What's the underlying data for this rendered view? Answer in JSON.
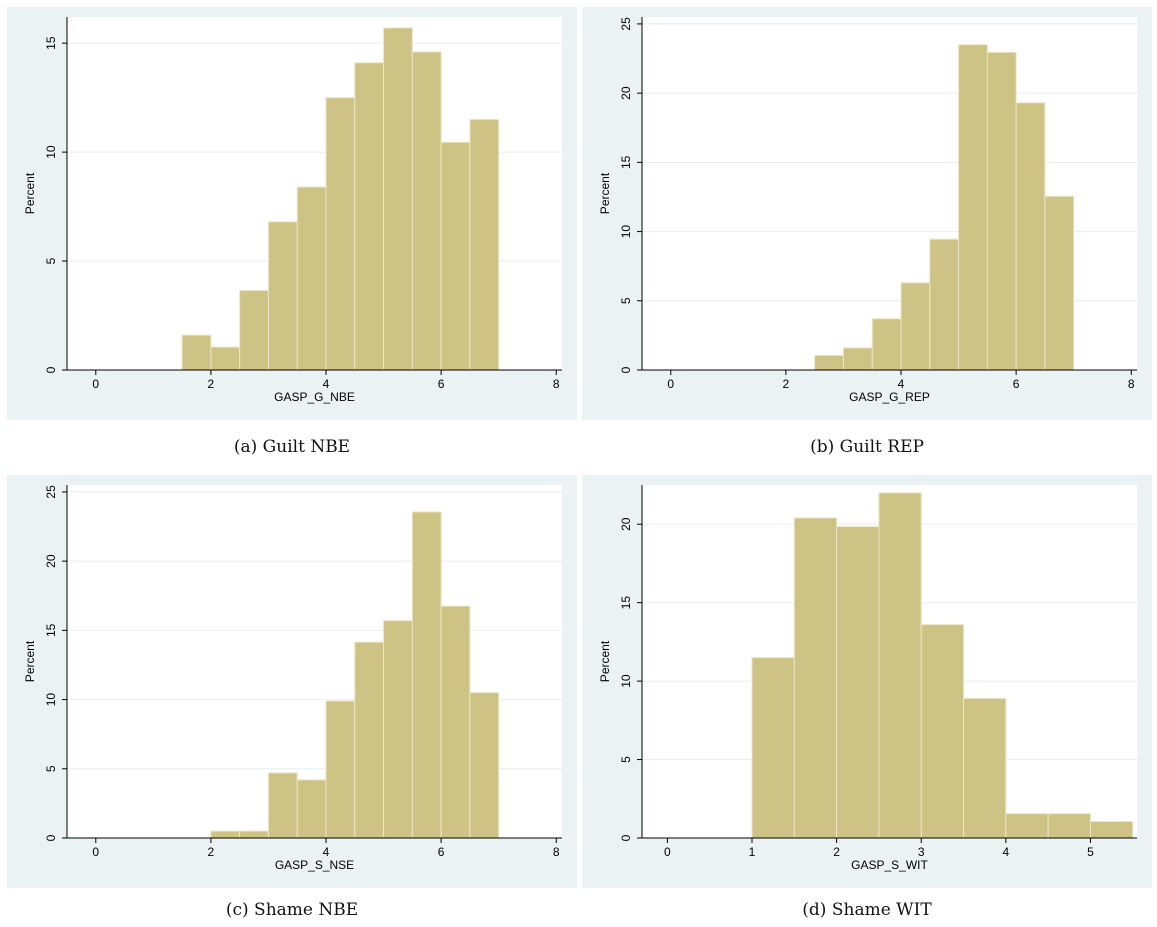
{
  "chart_data": [
    {
      "type": "bar",
      "caption": "(a) Guilt NBE",
      "xlabel": "GASP_G_NBE",
      "ylabel": "Percent",
      "xlim": [
        -0.5,
        8.1
      ],
      "ylim": [
        0,
        16.2
      ],
      "xticks": [
        0,
        2,
        4,
        6,
        8
      ],
      "yticks": [
        0,
        5,
        10,
        15
      ],
      "bin_width": 0.5,
      "bins": [
        {
          "x0": 1.5,
          "value": 1.6
        },
        {
          "x0": 2.0,
          "value": 1.05
        },
        {
          "x0": 2.5,
          "value": 3.65
        },
        {
          "x0": 3.0,
          "value": 6.8
        },
        {
          "x0": 3.5,
          "value": 8.4
        },
        {
          "x0": 4.0,
          "value": 12.5
        },
        {
          "x0": 4.5,
          "value": 14.1
        },
        {
          "x0": 5.0,
          "value": 15.7
        },
        {
          "x0": 5.5,
          "value": 14.6
        },
        {
          "x0": 6.0,
          "value": 10.45
        },
        {
          "x0": 6.5,
          "value": 11.5
        }
      ]
    },
    {
      "type": "bar",
      "caption": "(b) Guilt REP",
      "xlabel": "GASP_G_REP",
      "ylabel": "Percent",
      "xlim": [
        -0.5,
        8.1
      ],
      "ylim": [
        0,
        25.5
      ],
      "xticks": [
        0,
        2,
        4,
        6,
        8
      ],
      "yticks": [
        0,
        5,
        10,
        15,
        20,
        25
      ],
      "bin_width": 0.5,
      "bins": [
        {
          "x0": 2.5,
          "value": 1.05
        },
        {
          "x0": 3.0,
          "value": 1.6
        },
        {
          "x0": 3.5,
          "value": 3.7
        },
        {
          "x0": 4.0,
          "value": 6.3
        },
        {
          "x0": 4.5,
          "value": 9.45
        },
        {
          "x0": 5.0,
          "value": 23.5
        },
        {
          "x0": 5.5,
          "value": 22.95
        },
        {
          "x0": 6.0,
          "value": 19.3
        },
        {
          "x0": 6.5,
          "value": 12.55
        }
      ]
    },
    {
      "type": "bar",
      "caption": "(c) Shame NBE",
      "xlabel": "GASP_S_NSE",
      "ylabel": "Percent",
      "xlim": [
        -0.5,
        8.1
      ],
      "ylim": [
        0,
        25.5
      ],
      "xticks": [
        0,
        2,
        4,
        6,
        8
      ],
      "yticks": [
        0,
        5,
        10,
        15,
        20,
        25
      ],
      "bin_width": 0.5,
      "bins": [
        {
          "x0": 2.0,
          "value": 0.5
        },
        {
          "x0": 2.5,
          "value": 0.5
        },
        {
          "x0": 3.0,
          "value": 4.7
        },
        {
          "x0": 3.5,
          "value": 4.2
        },
        {
          "x0": 4.0,
          "value": 9.9
        },
        {
          "x0": 4.5,
          "value": 14.15
        },
        {
          "x0": 5.0,
          "value": 15.7
        },
        {
          "x0": 5.5,
          "value": 23.55
        },
        {
          "x0": 6.0,
          "value": 16.75
        },
        {
          "x0": 6.5,
          "value": 10.5
        }
      ]
    },
    {
      "type": "bar",
      "caption": "(d) Shame WIT",
      "xlabel": "GASP_S_WIT",
      "ylabel": "Percent",
      "xlim": [
        -0.3,
        5.55
      ],
      "ylim": [
        0,
        22.5
      ],
      "xticks": [
        0,
        1,
        2,
        3,
        4,
        5
      ],
      "yticks": [
        0,
        5,
        10,
        15,
        20
      ],
      "bin_width": 0.5,
      "bins": [
        {
          "x0": 1.0,
          "value": 11.5
        },
        {
          "x0": 1.5,
          "value": 20.4
        },
        {
          "x0": 2.0,
          "value": 19.85
        },
        {
          "x0": 2.5,
          "value": 22.0
        },
        {
          "x0": 3.0,
          "value": 13.6
        },
        {
          "x0": 3.5,
          "value": 8.9
        },
        {
          "x0": 4.0,
          "value": 1.55
        },
        {
          "x0": 4.5,
          "value": 1.55
        },
        {
          "x0": 5.0,
          "value": 1.05
        }
      ]
    }
  ],
  "colors": {
    "bar_fill": "#cdc384",
    "bar_edge": "#ebe6c7",
    "plot_bg": "#ffffff",
    "outer_bg": "#eaf2f3",
    "grid": "#e8eeef"
  }
}
